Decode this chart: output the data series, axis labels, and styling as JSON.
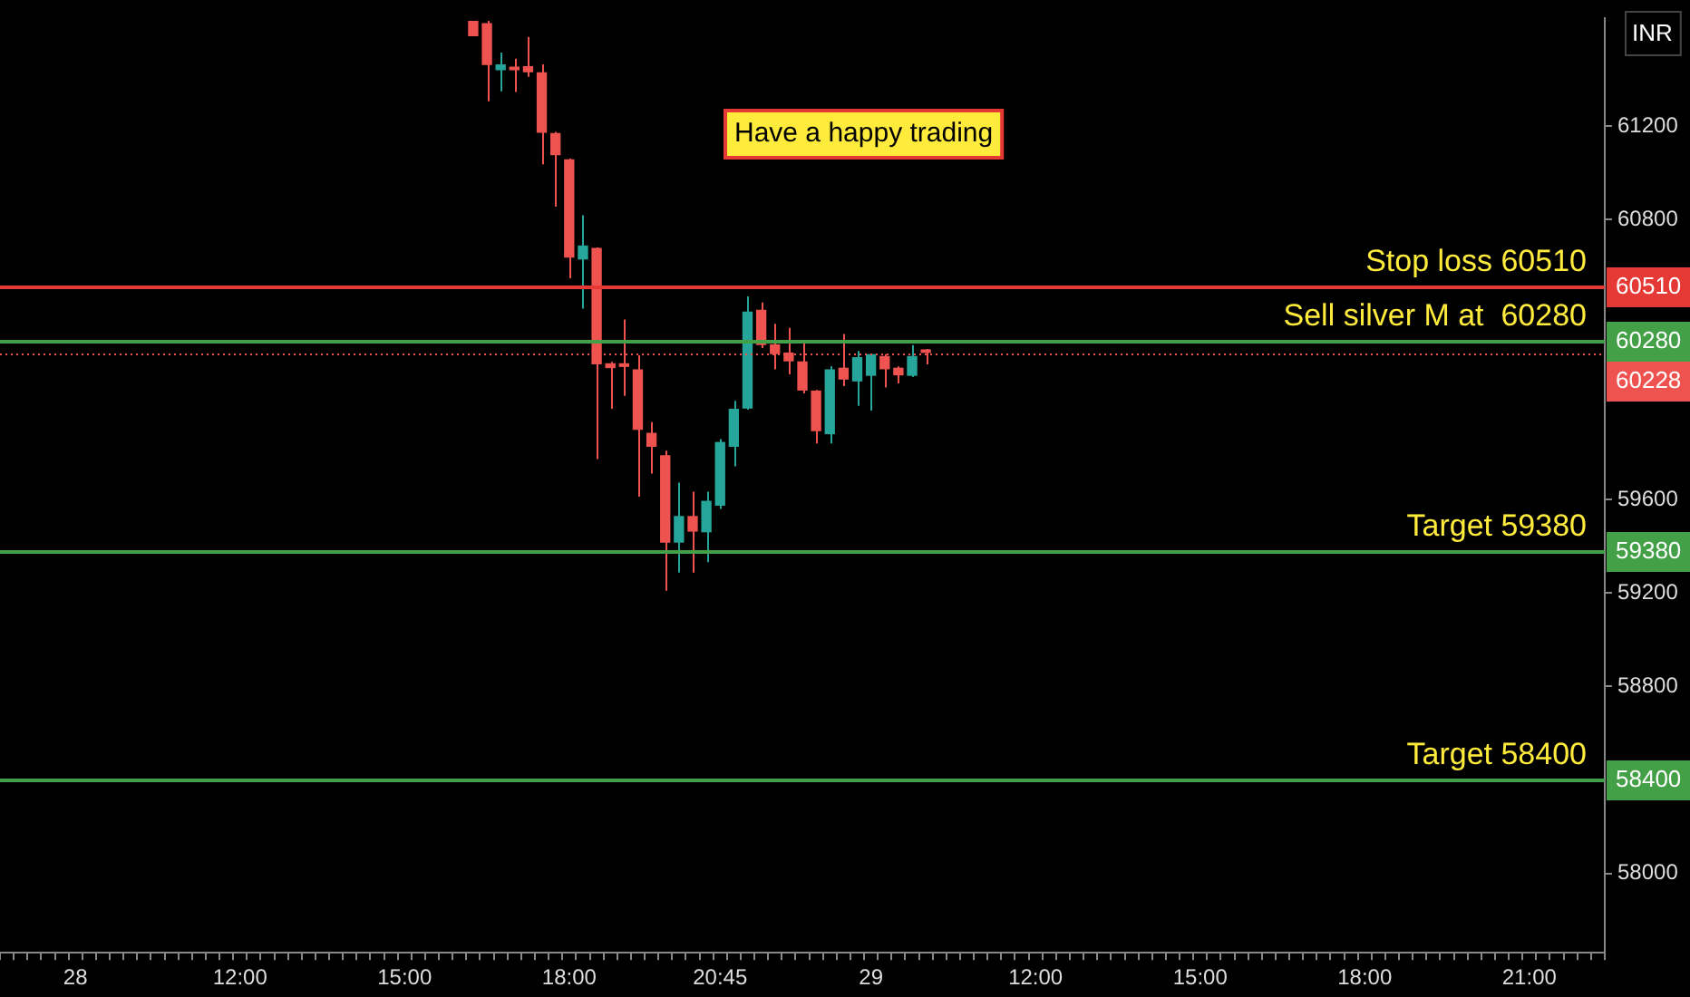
{
  "chart_data": {
    "type": "candlestick",
    "categories": [
      null,
      null,
      null,
      null,
      null,
      "28",
      null,
      null,
      null,
      null,
      null,
      null,
      null,
      null,
      null,
      null,
      null,
      "12:00",
      null,
      null,
      null,
      null,
      null,
      null,
      null,
      null,
      null,
      null,
      null,
      "15:00",
      null,
      null,
      null,
      null,
      null,
      null,
      null,
      null,
      null,
      null,
      null,
      "18:00",
      null,
      null,
      null,
      null,
      null,
      null,
      null,
      null,
      null,
      null,
      "20:45",
      null,
      null,
      null,
      null,
      null,
      null,
      null,
      null,
      null,
      null,
      "29",
      null,
      null,
      null,
      null,
      null,
      null,
      null,
      null,
      null,
      null,
      null,
      "12:00",
      null,
      null,
      null,
      null,
      null,
      null,
      null,
      null,
      null,
      null,
      null,
      "15:00",
      null,
      null,
      null,
      null,
      null,
      null,
      null,
      null,
      null,
      null,
      null,
      "18:00",
      null,
      null,
      null,
      null,
      null,
      null,
      null,
      null,
      null,
      null,
      null,
      "21:00",
      null,
      null,
      null,
      null,
      null
    ],
    "ohlc": [
      null,
      null,
      null,
      null,
      null,
      null,
      null,
      null,
      null,
      null,
      null,
      null,
      null,
      null,
      null,
      null,
      null,
      null,
      null,
      null,
      null,
      null,
      null,
      null,
      null,
      null,
      null,
      null,
      null,
      null,
      null,
      null,
      null,
      null,
      [
        61650,
        61650,
        61584,
        61584
      ],
      [
        61640,
        61650,
        61306,
        61461
      ],
      [
        61438,
        61514,
        61348,
        61464
      ],
      [
        61449,
        61488,
        61345,
        61438
      ],
      [
        61456,
        61581,
        61410,
        61430
      ],
      [
        61430,
        61464,
        61036,
        61171
      ],
      [
        61170,
        61175,
        60854,
        61075
      ],
      [
        61057,
        61060,
        60548,
        60636
      ],
      [
        60628,
        60818,
        60418,
        60688
      ],
      [
        60678,
        60680,
        59774,
        60179
      ],
      [
        60184,
        60190,
        59989,
        60163
      ],
      [
        60184,
        60371,
        60044,
        60168
      ],
      [
        60158,
        60218,
        59613,
        59899
      ],
      [
        59886,
        59932,
        59712,
        59826
      ],
      [
        59790,
        59810,
        59210,
        59416
      ],
      [
        59416,
        59673,
        59288,
        59530
      ],
      [
        59530,
        59634,
        59288,
        59463
      ],
      [
        59460,
        59634,
        59332,
        59595
      ],
      [
        59574,
        59859,
        59560,
        59847
      ],
      [
        59826,
        60023,
        59743,
        59989
      ],
      [
        59990,
        60470,
        59985,
        60405
      ],
      [
        60413,
        60444,
        60249,
        60262
      ],
      [
        60265,
        60353,
        60158,
        60223
      ],
      [
        60230,
        60335,
        60137,
        60192
      ],
      [
        60192,
        60275,
        60055,
        60067
      ],
      [
        60067,
        60070,
        59841,
        59893
      ],
      [
        59880,
        60171,
        59841,
        60158
      ],
      [
        60165,
        60309,
        60086,
        60114
      ],
      [
        60106,
        60236,
        60002,
        60210
      ],
      [
        60130,
        60225,
        59981,
        60223
      ],
      [
        60215,
        60223,
        60080,
        60158
      ],
      [
        60165,
        60170,
        60098,
        60132
      ],
      [
        60130,
        60262,
        60125,
        60215
      ],
      [
        60235,
        60245,
        60179,
        60228
      ],
      null,
      null,
      null,
      null,
      null,
      null,
      null,
      null,
      null,
      null,
      null,
      null,
      null,
      null,
      null,
      null,
      null,
      null,
      null,
      null,
      null,
      null,
      null,
      null,
      null,
      null,
      null,
      null,
      null,
      null,
      null,
      null,
      null,
      null,
      null,
      null,
      null,
      null,
      null,
      null,
      null,
      null,
      null,
      null,
      null,
      null,
      null,
      null,
      null
    ],
    "ylim": [
      57660,
      61660
    ],
    "yticks": [
      58000,
      58800,
      59200,
      59600,
      60800,
      61200
    ],
    "ref_lines": [
      {
        "axis": "y",
        "value": 60510,
        "label": "Stop loss 60510",
        "color": "#e53935"
      },
      {
        "axis": "y",
        "value": 60280,
        "label": "Sell silver M at  60280",
        "color": "#43a047"
      },
      {
        "axis": "y",
        "value": 60228,
        "label": null,
        "color": "#ef5350",
        "line_style": "dotted"
      },
      {
        "axis": "y",
        "value": 59380,
        "label": "Target 59380",
        "color": "#43a047"
      },
      {
        "axis": "y",
        "value": 58400,
        "label": "Target 58400",
        "color": "#43a047"
      }
    ],
    "annotations": [
      "Have a happy trading",
      "INR",
      "60510",
      "60280",
      "60228",
      "59380",
      "58400"
    ]
  }
}
